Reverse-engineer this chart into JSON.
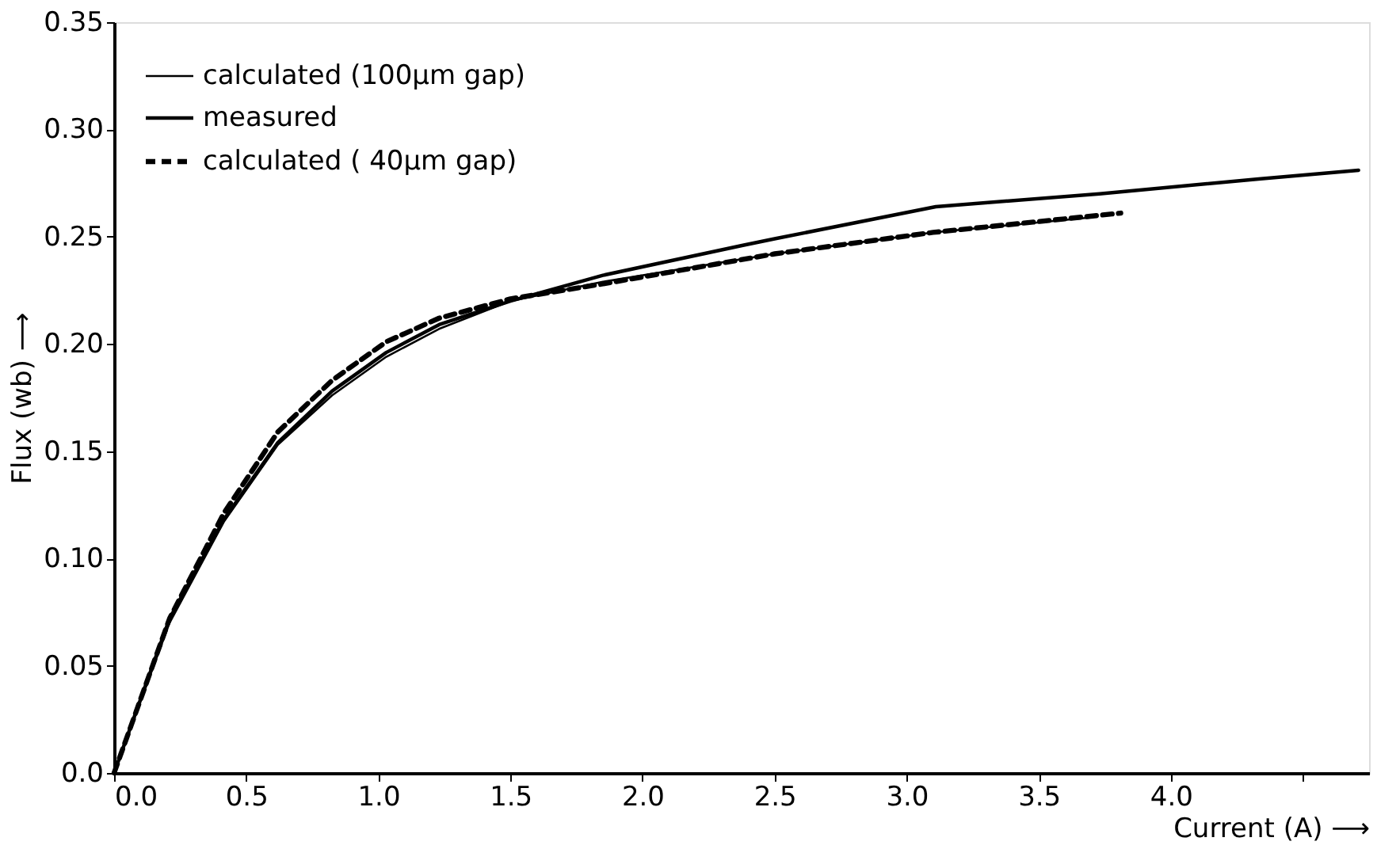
{
  "chart_data": {
    "type": "line",
    "xlabel": "Current (A) ⟶",
    "ylabel": "Flux (wb) ⟶",
    "xlim": [
      0,
      4.75
    ],
    "xticks": [
      {
        "value": 0,
        "label": "0.0"
      },
      0.5,
      {
        "value": 1,
        "label": "1.0"
      },
      1.5,
      {
        "value": 2,
        "label": "2.0"
      },
      2.5,
      {
        "value": 3,
        "label": "3.0"
      },
      3.5,
      {
        "value": 4,
        "label": "4.0"
      },
      {
        "value": 4.5,
        "label": null
      }
    ],
    "ylim": [
      0,
      0.35
    ],
    "yticks": [
      {
        "value": 0,
        "label": "0.0"
      },
      0.05,
      {
        "value": 0.1,
        "label": "0.10"
      },
      0.15,
      {
        "value": 0.2,
        "label": "0.20"
      },
      0.25,
      {
        "value": 0.3,
        "label": "0.30"
      },
      0.35
    ],
    "grid": false,
    "legend": "top left",
    "marker": "none",
    "series": [
      {
        "name": "calculated (100µm gap)",
        "color": "#000000",
        "line_style": "solid",
        "x": [
          0,
          0.21,
          0.415,
          0.62,
          0.825,
          1.03,
          1.23,
          1.5,
          1.85,
          2.5,
          3.1,
          3.7
        ],
        "values": [
          0,
          0.07,
          0.117,
          0.153,
          0.176,
          0.194,
          0.207,
          0.22,
          0.229,
          0.242,
          0.252,
          0.259
        ]
      },
      {
        "name": "measured",
        "color": "#000000",
        "line_style": "solid",
        "x": [
          0,
          0.21,
          0.415,
          0.62,
          0.825,
          1.03,
          1.23,
          1.5,
          1.85,
          2.38,
          2.5,
          3.11,
          3.73,
          4.34,
          4.71
        ],
        "values": [
          0,
          0.072,
          0.118,
          0.154,
          0.178,
          0.196,
          0.209,
          0.22,
          0.232,
          0.246,
          0.249,
          0.264,
          0.27,
          0.277,
          0.281
        ]
      },
      {
        "name": "calculated ( 40µm gap)",
        "color": "#000000",
        "line_style": "dashed",
        "x": [
          0,
          0.21,
          0.415,
          0.62,
          0.825,
          1.03,
          1.23,
          1.5,
          1.85,
          2.5,
          3.1,
          3.81
        ],
        "values": [
          0,
          0.072,
          0.121,
          0.159,
          0.183,
          0.201,
          0.212,
          0.221,
          0.228,
          0.242,
          0.252,
          0.261
        ]
      }
    ]
  }
}
